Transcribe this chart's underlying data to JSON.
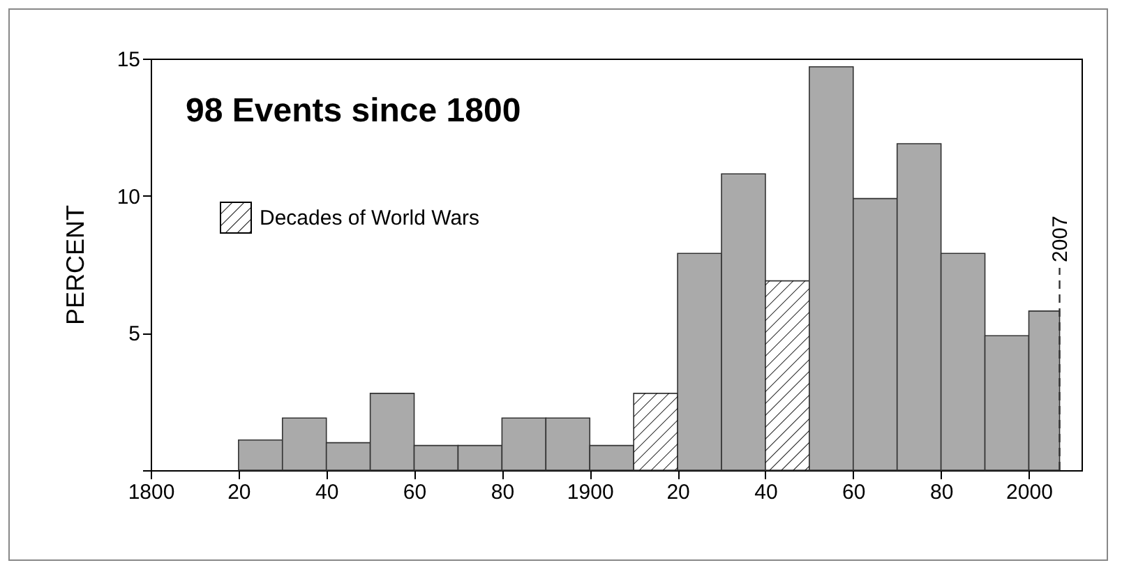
{
  "chart_data": {
    "type": "histogram",
    "title": "98 Events since 1800",
    "ylabel": "PERCENT",
    "bins": [
      1820,
      1830,
      1840,
      1850,
      1860,
      1870,
      1880,
      1890,
      1900,
      1910,
      1920,
      1930,
      1940,
      1950,
      1960,
      1970,
      1980,
      1990,
      2000,
      2007
    ],
    "values": [
      1.1,
      1.9,
      1,
      2.8,
      0.9,
      0.9,
      1.9,
      1.9,
      0.9,
      2.8,
      7.9,
      10.8,
      6.9,
      14.7,
      9.9,
      11.9,
      7.9,
      4.9,
      5.8
    ],
    "colors": [
      "#aaaaaa",
      "#aaaaaa",
      "#aaaaaa",
      "#aaaaaa",
      "#aaaaaa",
      "#aaaaaa",
      "#aaaaaa",
      "#aaaaaa",
      "#aaaaaa",
      "#ffffff",
      "#aaaaaa",
      "#aaaaaa",
      "#ffffff",
      "#aaaaaa",
      "#aaaaaa",
      "#aaaaaa",
      "#aaaaaa",
      "#aaaaaa",
      "#aaaaaa"
    ],
    "annotations": [
      "Decades of World Wars"
    ],
    "xlim": [
      1800,
      2012
    ],
    "ylim": [
      0,
      15
    ],
    "xticks": [
      1800,
      {
        "value": 1820,
        "label": "20"
      },
      {
        "value": 1840,
        "label": "40"
      },
      {
        "value": 1860,
        "label": "60"
      },
      {
        "value": 1880,
        "label": "80"
      },
      1900,
      {
        "value": 1920,
        "label": "20"
      },
      {
        "value": 1940,
        "label": "40"
      },
      {
        "value": 1960,
        "label": "60"
      },
      {
        "value": 1980,
        "label": "80"
      },
      2000
    ],
    "yticks": [
      {
        "value": 0,
        "label": null
      },
      5,
      10,
      15
    ],
    "ref_lines": [
      {
        "axis": "x",
        "value": 2007,
        "label": "2007",
        "line_style": "dashed"
      }
    ],
    "grid": false
  }
}
